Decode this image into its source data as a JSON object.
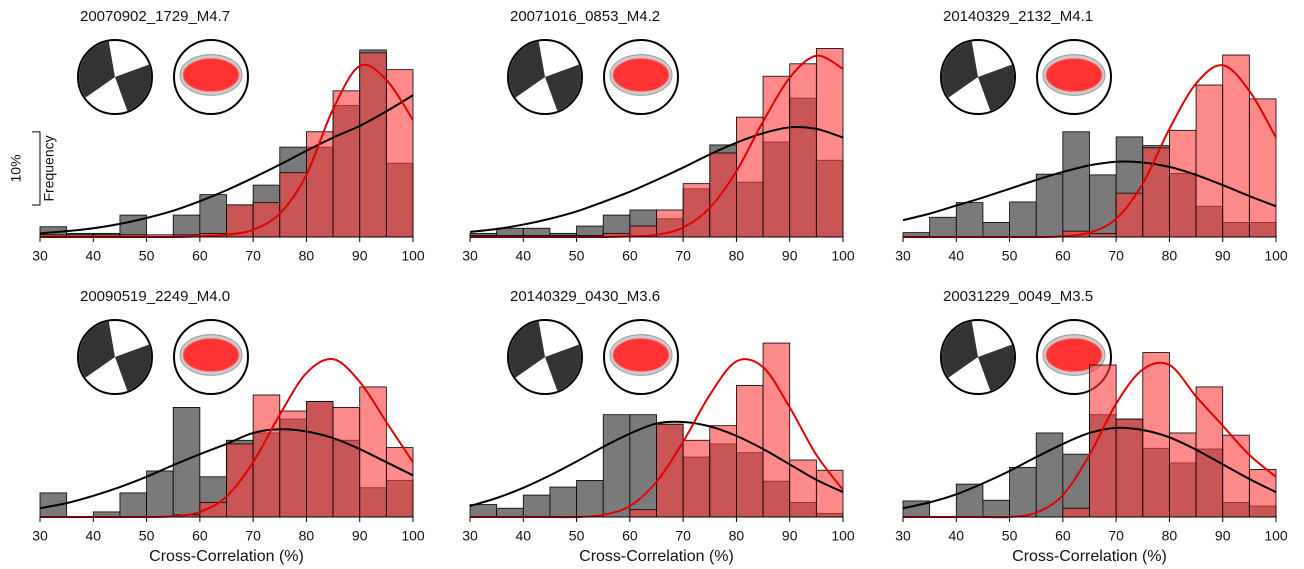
{
  "chart_data": [
    {
      "type": "histogram",
      "title": "20070902_1729_M4.7",
      "ylabel": "Frequency",
      "scale_bar": {
        "value": 10,
        "label": "10%"
      },
      "bins": [
        30,
        35,
        40,
        45,
        50,
        55,
        60,
        65,
        70,
        75,
        80,
        85,
        90,
        95,
        100
      ],
      "xlim": [
        30,
        100
      ],
      "xticks": [
        30,
        40,
        50,
        60,
        70,
        80,
        90,
        100
      ],
      "ylim": [
        0,
        26
      ],
      "series": [
        {
          "color": "#7a7a7a",
          "values": [
            1.4,
            0.5,
            0.5,
            3,
            0,
            3,
            5.8,
            4.4,
            7.1,
            12.3,
            12.3,
            18,
            25.6,
            10.1
          ],
          "fit": [
            0.5,
            0.8,
            1.2,
            1.8,
            2.6,
            3.6,
            4.9,
            6.4,
            8.1,
            9.9,
            11.8,
            13.6,
            15.2,
            17.2,
            19.4
          ]
        },
        {
          "color": "#ff3c3c",
          "values": [
            0.3,
            0.3,
            0.3,
            0.3,
            0.3,
            0.3,
            0.5,
            4.4,
            4.7,
            8.8,
            14.4,
            20,
            25.2,
            22.9
          ],
          "fit": [
            0,
            0,
            0,
            0,
            0,
            0,
            0.1,
            0.3,
            1,
            3.2,
            8.5,
            17.5,
            23.4,
            21.5,
            16
          ]
        }
      ]
    },
    {
      "type": "histogram",
      "title": "20071016_0853_M4.2",
      "bins": [
        30,
        35,
        40,
        45,
        50,
        55,
        60,
        65,
        70,
        75,
        80,
        85,
        90,
        95,
        100
      ],
      "xlim": [
        30,
        100
      ],
      "xticks": [
        30,
        40,
        50,
        60,
        70,
        80,
        90,
        100
      ],
      "ylim": [
        0,
        26
      ],
      "series": [
        {
          "color": "#7a7a7a",
          "values": [
            0.5,
            1.2,
            1.2,
            0.5,
            1.5,
            3,
            3.7,
            2.5,
            6.6,
            12.6,
            7.5,
            13,
            19,
            10.5
          ],
          "fit": [
            0.7,
            1.1,
            1.7,
            2.5,
            3.5,
            4.8,
            6.2,
            7.8,
            9.5,
            11.3,
            12.9,
            14.2,
            15,
            14.8,
            13.6
          ]
        },
        {
          "color": "#ff3c3c",
          "values": [
            0.2,
            0.2,
            0.2,
            0.2,
            0.2,
            0.5,
            1.5,
            3.7,
            7.3,
            11.5,
            16.4,
            22,
            23.7,
            25.8
          ],
          "fit": [
            0,
            0,
            0,
            0,
            0,
            0,
            0.1,
            0.3,
            1.3,
            4,
            9,
            15.8,
            21.8,
            24.8,
            23
          ]
        }
      ]
    },
    {
      "type": "histogram",
      "title": "20140329_2132_M4.1",
      "bins": [
        30,
        35,
        40,
        45,
        50,
        55,
        60,
        65,
        70,
        75,
        80,
        85,
        90,
        95,
        100
      ],
      "xlim": [
        30,
        100
      ],
      "xticks": [
        30,
        40,
        50,
        60,
        70,
        80,
        90,
        100
      ],
      "ylim": [
        0,
        26
      ],
      "series": [
        {
          "color": "#7a7a7a",
          "values": [
            0.6,
            2.7,
            4.7,
            2,
            4.8,
            8.6,
            14.4,
            8.5,
            13.7,
            12.5,
            8.7,
            4.2,
            2,
            2
          ],
          "fit": [
            2.3,
            3.2,
            4.3,
            5.4,
            6.6,
            7.8,
            8.9,
            9.8,
            10.3,
            10.2,
            9.6,
            8.5,
            7.1,
            5.6,
            4.2
          ]
        },
        {
          "color": "#ff3c3c",
          "values": [
            0,
            0,
            0,
            0,
            0,
            0,
            0.8,
            0.5,
            6,
            12.2,
            14.6,
            20.8,
            24.9,
            18.9
          ],
          "fit": [
            0,
            0,
            0,
            0,
            0,
            0,
            0.1,
            0.6,
            2.5,
            7.3,
            14.8,
            21,
            23.5,
            20,
            13.6
          ]
        }
      ]
    },
    {
      "type": "histogram",
      "title": "20090519_2249_M4.0",
      "xlabel": "Cross-Correlation (%)",
      "bins": [
        30,
        35,
        40,
        45,
        50,
        55,
        60,
        65,
        70,
        75,
        80,
        85,
        90,
        95,
        100
      ],
      "xlim": [
        30,
        100
      ],
      "xticks": [
        30,
        40,
        50,
        60,
        70,
        80,
        90,
        100
      ],
      "ylim": [
        0,
        26
      ],
      "series": [
        {
          "color": "#7a7a7a",
          "values": [
            3.3,
            0,
            0.7,
            3.3,
            6.3,
            15,
            5.5,
            10.5,
            11.5,
            13.4,
            15.8,
            10.5,
            4,
            5
          ],
          "fit": [
            1.2,
            1.9,
            2.9,
            4.1,
            5.5,
            7.1,
            8.6,
            10,
            11.5,
            12,
            11.7,
            10.8,
            9.3,
            7.5,
            5.7
          ]
        },
        {
          "color": "#ff3c3c",
          "values": [
            0,
            0,
            0,
            0,
            0,
            0.3,
            2,
            10,
            16.7,
            14.5,
            15.8,
            15,
            17.8,
            9.5
          ],
          "fit": [
            0,
            0,
            0,
            0,
            0,
            0.1,
            0.7,
            2.8,
            7.5,
            14,
            19.7,
            21.6,
            18.5,
            13,
            7.5
          ]
        }
      ]
    },
    {
      "type": "histogram",
      "title": "20140329_0430_M3.6",
      "xlabel": "Cross-Correlation (%)",
      "bins": [
        30,
        35,
        40,
        45,
        50,
        55,
        60,
        65,
        70,
        75,
        80,
        85,
        90,
        95,
        100
      ],
      "xlim": [
        30,
        100
      ],
      "xticks": [
        30,
        40,
        50,
        60,
        70,
        80,
        90,
        100
      ],
      "ylim": [
        0,
        26
      ],
      "series": [
        {
          "color": "#7a7a7a",
          "values": [
            1.7,
            1.2,
            3,
            4.1,
            5,
            14,
            14,
            12.7,
            8.2,
            10,
            8.8,
            4.9,
            2,
            0.5
          ],
          "fit": [
            1.5,
            2.6,
            4,
            5.7,
            7.6,
            9.6,
            11.4,
            12.8,
            13,
            12.4,
            11.1,
            9.3,
            7.2,
            5.1,
            3.4
          ]
        },
        {
          "color": "#ff3c3c",
          "values": [
            0,
            0,
            0,
            0,
            0,
            0,
            1,
            12.7,
            10.5,
            12.5,
            18,
            23.8,
            7.8,
            6.4
          ],
          "fit": [
            0,
            0,
            0,
            0,
            0,
            0.3,
            1.5,
            4.8,
            10.3,
            16.7,
            21.3,
            20.5,
            15,
            8.5,
            3.7
          ]
        }
      ]
    },
    {
      "type": "histogram",
      "title": "20031229_0049_M3.5",
      "xlabel": "Cross-Correlation (%)",
      "bins": [
        30,
        35,
        40,
        45,
        50,
        55,
        60,
        65,
        70,
        75,
        80,
        85,
        90,
        95,
        100
      ],
      "xlim": [
        30,
        100
      ],
      "xticks": [
        30,
        40,
        50,
        60,
        70,
        80,
        90,
        100
      ],
      "ylim": [
        0,
        26
      ],
      "series": [
        {
          "color": "#7a7a7a",
          "values": [
            2.2,
            0,
            4.5,
            2.3,
            6.8,
            11.5,
            8.6,
            14,
            13.4,
            9.4,
            7.4,
            9.3,
            2,
            1.5
          ],
          "fit": [
            1.2,
            2,
            3.1,
            4.6,
            6.3,
            8.2,
            10,
            11.5,
            12.2,
            11.9,
            10.9,
            9.2,
            7.2,
            5.2,
            3.4
          ]
        },
        {
          "color": "#ff3c3c",
          "values": [
            0,
            0,
            0,
            0,
            0,
            0,
            1.2,
            20.8,
            13.4,
            22.5,
            11.5,
            17.8,
            11.2,
            6.5
          ],
          "fit": [
            0,
            0,
            0,
            0,
            0,
            0.6,
            3,
            8.5,
            15.5,
            20.2,
            20.8,
            16.5,
            12.5,
            8.5,
            5.5
          ]
        }
      ]
    }
  ]
}
